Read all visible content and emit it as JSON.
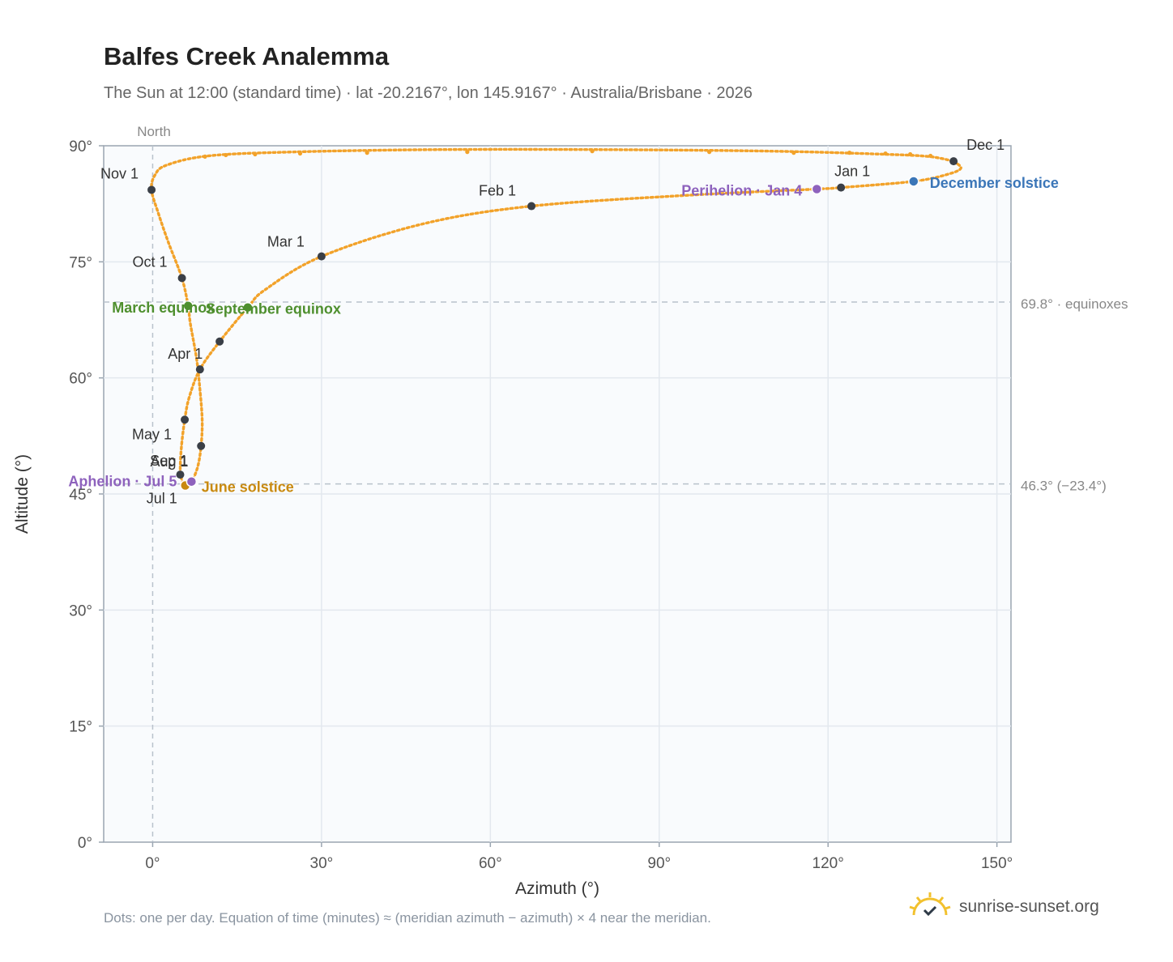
{
  "header": {
    "title": "Balfes Creek Analemma",
    "subtitle": "The Sun at 12:00 (standard time) · lat -20.2167°, lon 145.9167° · Australia/Brisbane · 2026"
  },
  "footer": {
    "note": "Dots: one per day. Equation of time (minutes) ≈ (meridian azimuth − azimuth) × 4 near the meridian.",
    "brand": "sunrise-sunset.org"
  },
  "colors": {
    "curve": "#f2a22a",
    "month_marker": "#3a3f47",
    "equinox": "#4e8f2e",
    "june_solstice": "#c98a10",
    "december_solstice": "#3b76b8",
    "apsis": "#8e62bd",
    "plot_bg": "#f9fbfd",
    "grid": "#e3e8ee",
    "ref_line": "#b9c2cc"
  },
  "chart_data": {
    "type": "scatter",
    "title": "Balfes Creek Analemma",
    "xlabel": "Azimuth (°)",
    "ylabel": "Altitude (°)",
    "xlim": [
      -8.7,
      152.5
    ],
    "ylim": [
      0,
      90
    ],
    "xticks": [
      0,
      30,
      60,
      90,
      120,
      150
    ],
    "xtick_labels": [
      "0°",
      "30°",
      "60°",
      "90°",
      "120°",
      "150°"
    ],
    "yticks": [
      0,
      15,
      30,
      45,
      60,
      75,
      90
    ],
    "ytick_labels": [
      "0°",
      "15°",
      "30°",
      "45°",
      "60°",
      "75°",
      "90°"
    ],
    "grid": true,
    "meridian": {
      "x": 0,
      "label": "North"
    },
    "reference_lines": [
      {
        "y": 69.8,
        "label": "69.8° · equinoxes"
      },
      {
        "y": 46.3,
        "label": "46.3° (−23.4°)"
      }
    ],
    "path": [
      {
        "x": 142.3,
        "y": 88.0
      },
      {
        "x": 143.6,
        "y": 87.1
      },
      {
        "x": 141.2,
        "y": 86.3
      },
      {
        "x": 135.2,
        "y": 85.4
      },
      {
        "x": 122.3,
        "y": 84.6
      },
      {
        "x": 118.0,
        "y": 84.4
      },
      {
        "x": 95.0,
        "y": 83.6
      },
      {
        "x": 67.3,
        "y": 82.2
      },
      {
        "x": 48.0,
        "y": 79.9
      },
      {
        "x": 30.0,
        "y": 75.7
      },
      {
        "x": 20.0,
        "y": 71.4
      },
      {
        "x": 16.9,
        "y": 69.1
      },
      {
        "x": 11.9,
        "y": 64.7
      },
      {
        "x": 8.4,
        "y": 61.1
      },
      {
        "x": 6.5,
        "y": 57.5
      },
      {
        "x": 5.7,
        "y": 54.6
      },
      {
        "x": 5.1,
        "y": 51.0
      },
      {
        "x": 4.9,
        "y": 48.0
      },
      {
        "x": 5.2,
        "y": 46.8
      },
      {
        "x": 5.8,
        "y": 46.1
      },
      {
        "x": 6.9,
        "y": 46.6
      },
      {
        "x": 8.0,
        "y": 48.5
      },
      {
        "x": 8.6,
        "y": 51.2
      },
      {
        "x": 8.8,
        "y": 54.5
      },
      {
        "x": 8.4,
        "y": 58.5
      },
      {
        "x": 7.8,
        "y": 62.5
      },
      {
        "x": 6.7,
        "y": 67.0
      },
      {
        "x": 6.3,
        "y": 69.3
      },
      {
        "x": 5.2,
        "y": 72.9
      },
      {
        "x": 2.8,
        "y": 77.5
      },
      {
        "x": 1.0,
        "y": 81.3
      },
      {
        "x": -0.2,
        "y": 84.3
      },
      {
        "x": 0.4,
        "y": 86.2
      },
      {
        "x": 2.5,
        "y": 87.5
      },
      {
        "x": 10.0,
        "y": 88.7
      },
      {
        "x": 25.0,
        "y": 89.2
      },
      {
        "x": 50.0,
        "y": 89.5
      },
      {
        "x": 80.0,
        "y": 89.5
      },
      {
        "x": 110.0,
        "y": 89.3
      },
      {
        "x": 130.0,
        "y": 88.9
      },
      {
        "x": 138.0,
        "y": 88.6
      },
      {
        "x": 142.3,
        "y": 88.0
      }
    ],
    "sparse_dots": [
      {
        "x": 9.3,
        "y": 88.6
      },
      {
        "x": 13.0,
        "y": 88.8
      },
      {
        "x": 18.2,
        "y": 88.9
      },
      {
        "x": 26.2,
        "y": 89.0
      },
      {
        "x": 38.1,
        "y": 89.1
      },
      {
        "x": 55.9,
        "y": 89.2
      },
      {
        "x": 78.1,
        "y": 89.3
      },
      {
        "x": 98.9,
        "y": 89.2
      },
      {
        "x": 113.9,
        "y": 89.1
      },
      {
        "x": 123.8,
        "y": 89.1
      },
      {
        "x": 130.2,
        "y": 89.0
      },
      {
        "x": 134.6,
        "y": 88.9
      },
      {
        "x": 138.2,
        "y": 88.7
      }
    ],
    "month_markers": [
      {
        "label": "Jan 1",
        "x": 122.3,
        "y": 84.6
      },
      {
        "label": "Feb 1",
        "x": 67.3,
        "y": 82.2
      },
      {
        "label": "Mar 1",
        "x": 30.0,
        "y": 75.7
      },
      {
        "label": "Apr 1",
        "x": 8.4,
        "y": 61.1
      },
      {
        "label": "May 1",
        "x": 5.7,
        "y": 54.6
      },
      {
        "label": "Jul 1",
        "x": 5.8,
        "y": 46.1
      },
      {
        "label": "Aug 1",
        "x": 4.9,
        "y": 47.5
      },
      {
        "label": "Sep 1",
        "x": 8.6,
        "y": 51.2
      },
      {
        "label": "Oct 1",
        "x": 5.2,
        "y": 72.9
      },
      {
        "label": "Nov 1",
        "x": -0.2,
        "y": 84.3
      },
      {
        "label": "Dec 1",
        "x": 142.3,
        "y": 88.0
      }
    ],
    "unmarked_markers": [
      {
        "x": 11.9,
        "y": 64.7
      }
    ],
    "events": [
      {
        "label": "March equinox",
        "x": 6.3,
        "y": 69.3,
        "color_key": "equinox"
      },
      {
        "label": "September equinox",
        "x": 16.9,
        "y": 69.1,
        "color_key": "equinox"
      },
      {
        "label": "June solstice",
        "x": 5.8,
        "y": 46.1,
        "color_key": "june_solstice"
      },
      {
        "label": "December solstice",
        "x": 135.2,
        "y": 85.4,
        "color_key": "december_solstice"
      },
      {
        "label": "Perihelion · Jan 4",
        "x": 118.0,
        "y": 84.4,
        "color_key": "apsis"
      },
      {
        "label": "Aphelion · Jul 5",
        "x": 6.9,
        "y": 46.6,
        "color_key": "apsis"
      }
    ]
  }
}
